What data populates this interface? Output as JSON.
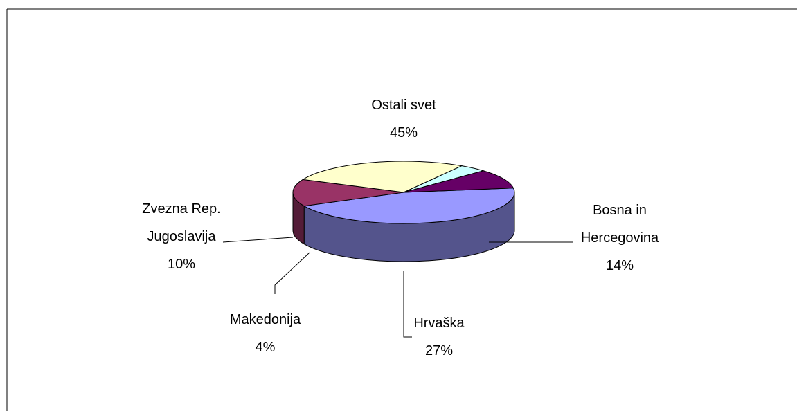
{
  "chart_data": {
    "type": "pie3d",
    "categories": [
      "Ostali svet",
      "Bosna in Hercegovina",
      "Hrvaška",
      "Makedonija",
      "Zvezna Rep. Jugoslavija"
    ],
    "values": [
      45,
      14,
      27,
      4,
      10
    ],
    "value_labels": [
      "45%",
      "14%",
      "27%",
      "4%",
      "10%"
    ],
    "colors": [
      "#9999ff",
      "#993366",
      "#ffffcc",
      "#ccffff",
      "#660066"
    ]
  }
}
